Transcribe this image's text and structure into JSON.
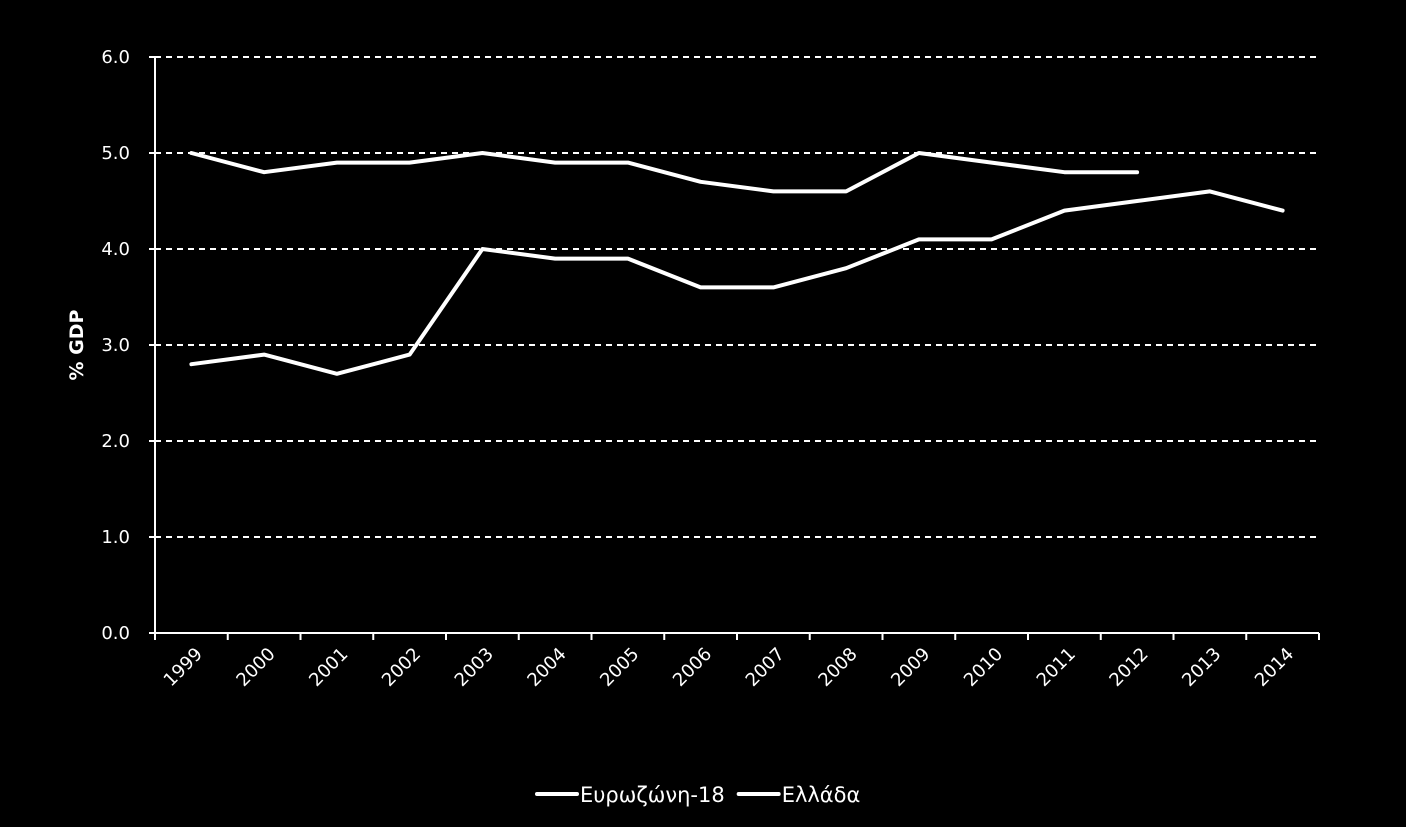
{
  "chart_data": {
    "type": "line",
    "title": "",
    "xlabel": "",
    "ylabel": "% GDP",
    "ylim": [
      0,
      6
    ],
    "yticks": [
      "0.0",
      "1.0",
      "2.0",
      "3.0",
      "4.0",
      "5.0",
      "6.0"
    ],
    "categories": [
      "1999",
      "2000",
      "2001",
      "2002",
      "2003",
      "2004",
      "2005",
      "2006",
      "2007",
      "2008",
      "2009",
      "2010",
      "2011",
      "2012",
      "2013",
      "2014"
    ],
    "grid": "horizontal dashed",
    "legend_position": "bottom",
    "series": [
      {
        "name": "Ευρωζώνη-18",
        "color": "#ffffff",
        "values": [
          5.0,
          4.8,
          4.9,
          4.9,
          5.0,
          4.9,
          4.9,
          4.7,
          4.6,
          4.6,
          5.0,
          4.9,
          4.8,
          4.8,
          null,
          null
        ]
      },
      {
        "name": "Ελλάδα",
        "color": "#ffffff",
        "values": [
          2.8,
          2.9,
          2.7,
          2.9,
          4.0,
          3.9,
          3.9,
          3.6,
          3.6,
          3.8,
          4.1,
          4.1,
          4.4,
          4.5,
          4.6,
          4.4
        ]
      }
    ]
  }
}
